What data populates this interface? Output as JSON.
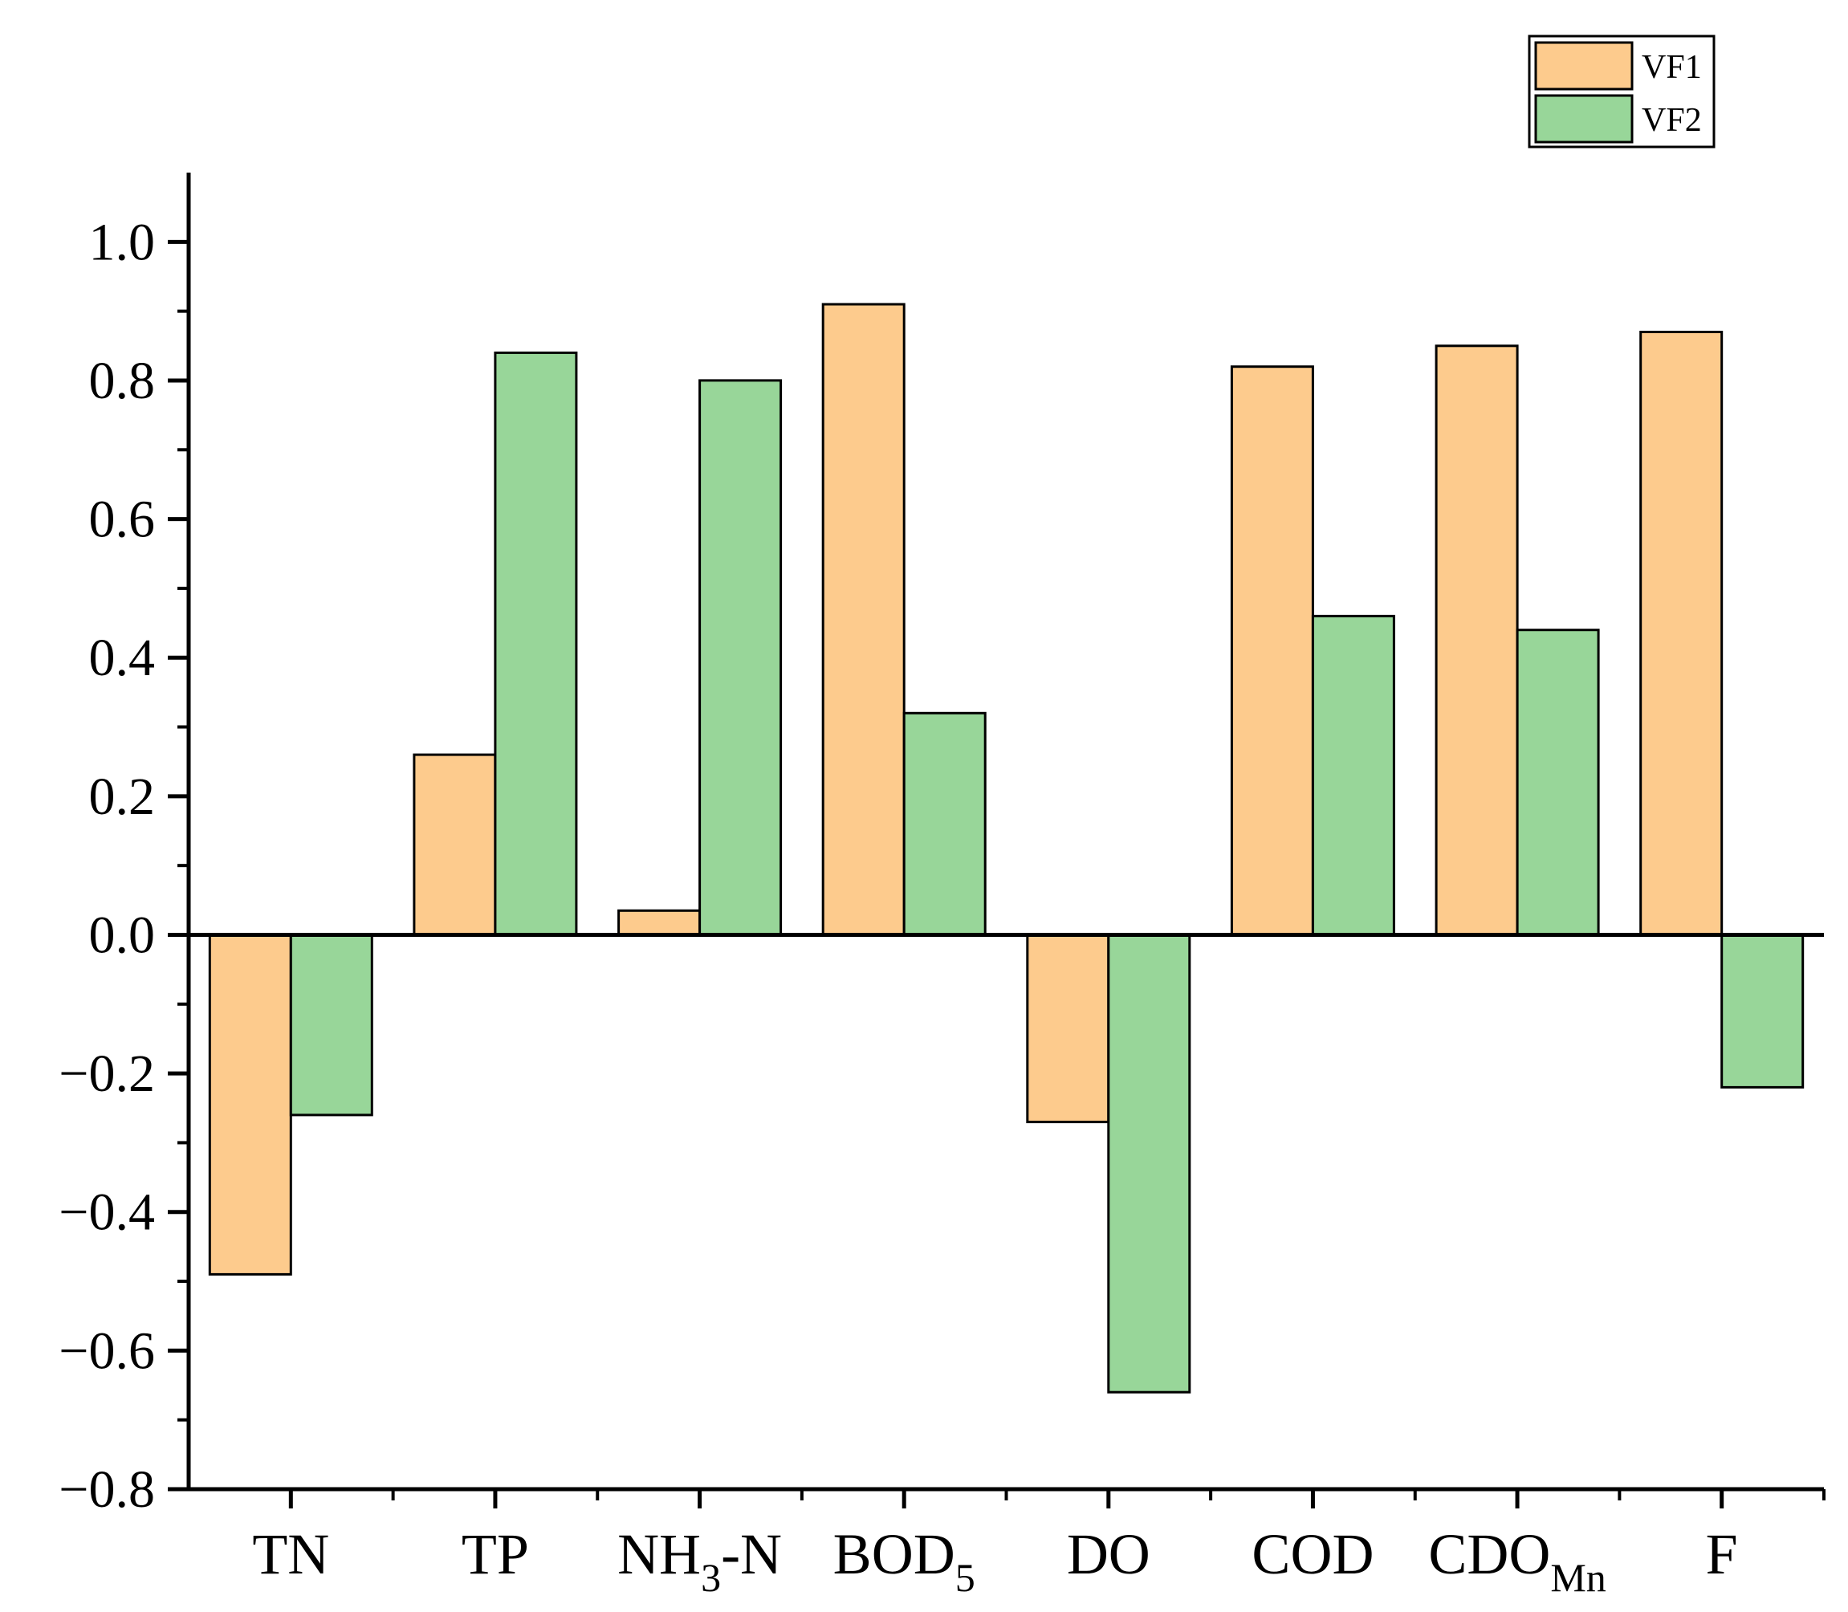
{
  "chart_data": {
    "type": "bar",
    "title": "",
    "xlabel": "",
    "ylabel": "",
    "ylim": [
      -0.8,
      1.1
    ],
    "yticks": [
      "1.0",
      "0.8",
      "0.6",
      "0.4",
      "0.2",
      "0.0",
      "−0.2",
      "−0.4",
      "−0.6",
      "−0.8"
    ],
    "ytick_values": [
      1.0,
      0.8,
      0.6,
      0.4,
      0.2,
      0.0,
      -0.2,
      -0.4,
      -0.6,
      -0.8
    ],
    "categories": [
      {
        "main": "TN",
        "sub": ""
      },
      {
        "main": "TP",
        "sub": ""
      },
      {
        "main": "NH",
        "sub": "3",
        "suffix": "-N"
      },
      {
        "main": "BOD",
        "sub": "5"
      },
      {
        "main": "DO",
        "sub": ""
      },
      {
        "main": "COD",
        "sub": ""
      },
      {
        "main": "CDO",
        "sub": "Mn"
      },
      {
        "main": "F",
        "sub": ""
      }
    ],
    "series": [
      {
        "name": "VF1",
        "color": "#FDCB8D",
        "values": [
          -0.49,
          0.26,
          0.035,
          0.91,
          -0.27,
          0.82,
          0.85,
          0.87
        ]
      },
      {
        "name": "VF2",
        "color": "#98D699",
        "values": [
          -0.26,
          0.84,
          0.8,
          0.32,
          -0.66,
          0.46,
          0.44,
          -0.22
        ]
      }
    ],
    "legend": {
      "position": "top-right"
    },
    "grid": false
  }
}
